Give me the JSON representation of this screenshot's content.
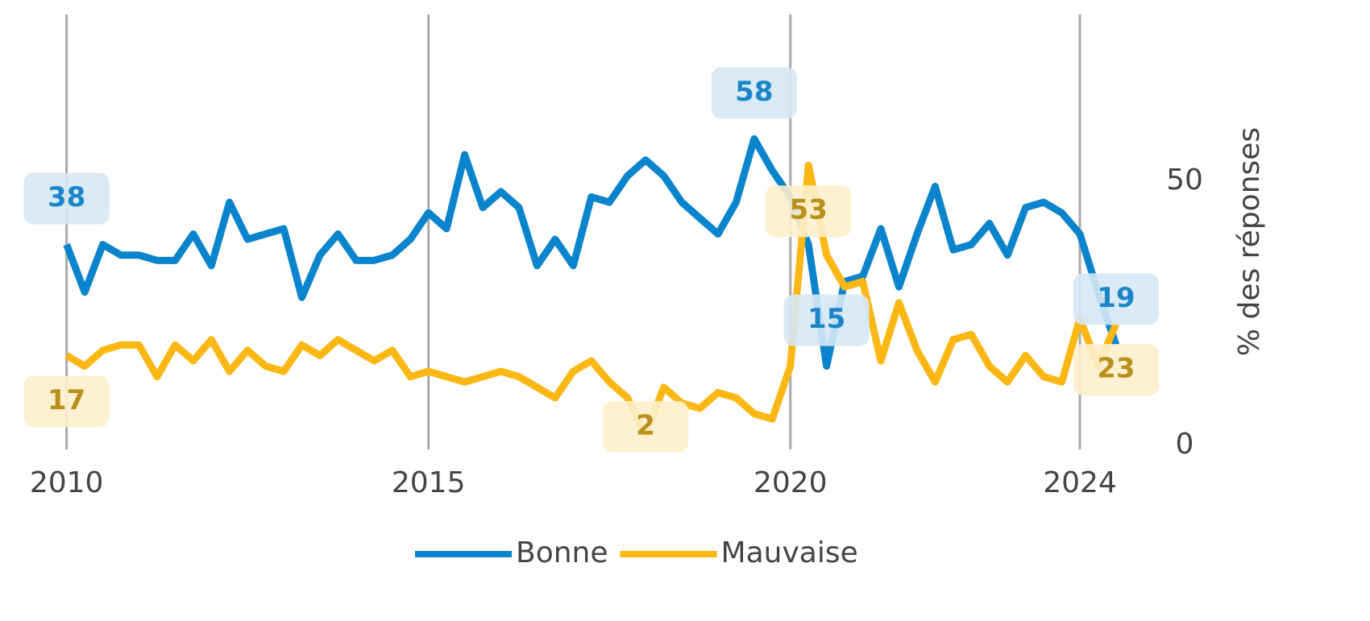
{
  "chart_data": {
    "type": "line",
    "y_axis_label": "% des réponses",
    "xlim": [
      2009.08,
      2025.08
    ],
    "xticks": [
      2010,
      2015,
      2020,
      2024
    ],
    "ylim": [
      0,
      80
    ],
    "yticks": [
      0,
      50
    ],
    "grid": true,
    "legend": "bottom",
    "x": [
      2010,
      2010.25,
      2010.5,
      2010.75,
      2011,
      2011.25,
      2011.5,
      2011.75,
      2012,
      2012.25,
      2012.5,
      2012.75,
      2013,
      2013.25,
      2013.5,
      2013.75,
      2014,
      2014.25,
      2014.5,
      2014.75,
      2015,
      2015.25,
      2015.5,
      2015.75,
      2016,
      2016.25,
      2016.5,
      2016.75,
      2017,
      2017.25,
      2017.5,
      2017.75,
      2018,
      2018.25,
      2018.5,
      2018.75,
      2019,
      2019.25,
      2019.5,
      2019.75,
      2020,
      2020.25,
      2020.5,
      2020.75,
      2021,
      2021.25,
      2021.5,
      2021.75,
      2022,
      2022.25,
      2022.5,
      2022.75,
      2023,
      2023.25,
      2023.5,
      2023.75,
      2024,
      2024.25,
      2024.5
    ],
    "series": [
      {
        "name": "Bonne",
        "color": "#0a84cc",
        "label_fill": "#d6e8f5",
        "label_color": "#1a86c8",
        "values": [
          38,
          29,
          38,
          36,
          36,
          35,
          35,
          40,
          34,
          46,
          39,
          40,
          41,
          28,
          36,
          40,
          35,
          35,
          36,
          39,
          44,
          41,
          55,
          45,
          48,
          45,
          34,
          39,
          34,
          47,
          46,
          51,
          54,
          51,
          46,
          43,
          40,
          46,
          58,
          52,
          47,
          38,
          15,
          31,
          32,
          41,
          30,
          40,
          49,
          37,
          38,
          42,
          36,
          45,
          46,
          44,
          40,
          29,
          19
        ],
        "value_labels": [
          "38",
          null,
          null,
          null,
          null,
          null,
          null,
          null,
          null,
          null,
          null,
          null,
          null,
          null,
          null,
          null,
          null,
          null,
          null,
          null,
          null,
          null,
          null,
          null,
          null,
          null,
          null,
          null,
          null,
          null,
          null,
          null,
          null,
          null,
          null,
          null,
          null,
          null,
          "58",
          null,
          null,
          null,
          "15",
          null,
          null,
          null,
          null,
          null,
          null,
          null,
          null,
          null,
          null,
          null,
          null,
          null,
          null,
          null,
          "19"
        ]
      },
      {
        "name": "Mauvaise",
        "color": "#fbb714",
        "label_fill": "#fdefcc",
        "label_color": "#b8901a",
        "values": [
          17,
          15,
          18,
          19,
          19,
          13,
          19,
          16,
          20,
          14,
          18,
          15,
          14,
          19,
          17,
          20,
          18,
          16,
          18,
          13,
          14,
          13,
          12,
          13,
          14,
          13,
          11,
          9,
          14,
          16,
          12,
          9,
          2,
          11,
          8,
          7,
          10,
          9,
          6,
          5,
          15,
          53,
          36,
          30,
          31,
          16,
          27,
          18,
          12,
          20,
          21,
          15,
          12,
          17,
          13,
          12,
          24,
          15,
          23
        ],
        "value_labels": [
          "17",
          null,
          null,
          null,
          null,
          null,
          null,
          null,
          null,
          null,
          null,
          null,
          null,
          null,
          null,
          null,
          null,
          null,
          null,
          null,
          null,
          null,
          null,
          null,
          null,
          null,
          null,
          null,
          null,
          null,
          null,
          null,
          "2",
          null,
          null,
          null,
          null,
          null,
          null,
          null,
          null,
          "53",
          null,
          null,
          null,
          null,
          null,
          null,
          null,
          null,
          null,
          null,
          null,
          null,
          null,
          null,
          null,
          null,
          "23"
        ]
      }
    ]
  }
}
